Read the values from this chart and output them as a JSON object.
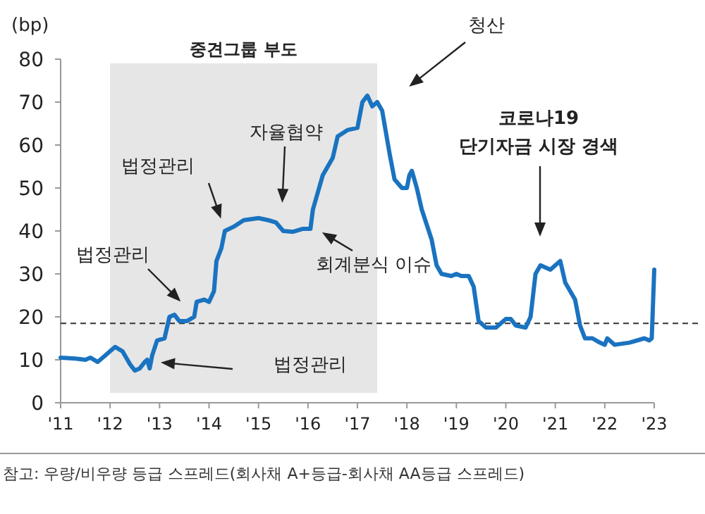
{
  "chart_data": {
    "type": "line",
    "ylabel": "(bp)",
    "x": [
      2011.0,
      2011.3,
      2011.5,
      2011.6,
      2011.75,
      2011.9,
      2012.0,
      2012.1,
      2012.25,
      2012.4,
      2012.5,
      2012.6,
      2012.7,
      2012.75,
      2012.8,
      2012.85,
      2012.95,
      2013.1,
      2013.2,
      2013.3,
      2013.4,
      2013.55,
      2013.7,
      2013.75,
      2013.9,
      2014.0,
      2014.1,
      2014.15,
      2014.25,
      2014.32,
      2014.5,
      2014.7,
      2015.0,
      2015.2,
      2015.35,
      2015.5,
      2015.7,
      2015.9,
      2016.05,
      2016.1,
      2016.3,
      2016.5,
      2016.6,
      2016.8,
      2017.0,
      2017.1,
      2017.2,
      2017.3,
      2017.4,
      2017.5,
      2017.65,
      2017.75,
      2017.9,
      2018.0,
      2018.05,
      2018.1,
      2018.2,
      2018.3,
      2018.5,
      2018.6,
      2018.7,
      2018.9,
      2019.0,
      2019.1,
      2019.25,
      2019.35,
      2019.45,
      2019.6,
      2019.8,
      2020.0,
      2020.1,
      2020.2,
      2020.4,
      2020.5,
      2020.6,
      2020.7,
      2020.9,
      2021.0,
      2021.1,
      2021.2,
      2021.4,
      2021.5,
      2021.6,
      2021.75,
      2021.9,
      2022.0,
      2022.05,
      2022.2,
      2022.5,
      2022.8,
      2022.9,
      2022.95,
      2023.0
    ],
    "series": [
      {
        "color": "#1a73c0",
        "values": [
          10.5,
          10.3,
          10,
          10.5,
          9.5,
          11,
          12,
          13,
          12,
          9,
          7.5,
          8,
          9.5,
          10,
          8,
          11,
          14.5,
          15,
          20,
          20.5,
          19,
          19,
          20,
          23.5,
          24,
          23.5,
          26,
          33,
          36,
          40,
          41,
          42.5,
          43,
          42.5,
          42,
          40,
          39.8,
          40.5,
          40.5,
          45,
          53,
          57,
          62,
          63.5,
          64,
          70,
          71.5,
          69,
          70,
          68,
          58,
          52,
          50,
          50,
          53,
          54,
          50,
          45,
          38,
          32,
          30,
          29.5,
          30,
          29.5,
          29.5,
          27,
          19,
          17.5,
          17.5,
          19.5,
          19.5,
          18,
          17.5,
          20,
          30,
          32,
          31,
          32,
          33,
          28,
          24,
          18,
          15,
          15,
          14,
          13.5,
          15,
          13.5,
          14,
          15,
          14.5,
          15,
          31
        ]
      }
    ],
    "xlim": [
      2011,
      2023
    ],
    "ylim": [
      0,
      80
    ],
    "xticks": [
      {
        "value": 2011,
        "label": "'11"
      },
      {
        "value": 2012,
        "label": "'12"
      },
      {
        "value": 2013,
        "label": "'13"
      },
      {
        "value": 2014,
        "label": "'14"
      },
      {
        "value": 2015,
        "label": "'15"
      },
      {
        "value": 2016,
        "label": "'16"
      },
      {
        "value": 2017,
        "label": "'17"
      },
      {
        "value": 2018,
        "label": "'18"
      },
      {
        "value": 2019,
        "label": "'19"
      },
      {
        "value": 2020,
        "label": "'20"
      },
      {
        "value": 2021,
        "label": "'21"
      },
      {
        "value": 2022,
        "label": "'22"
      },
      {
        "value": 2023,
        "label": "'23"
      }
    ],
    "yticks": [
      0,
      10,
      20,
      30,
      40,
      50,
      60,
      70,
      80
    ],
    "grid": false,
    "marker": "none",
    "line_style": "solid",
    "bands": [
      {
        "axis": "x",
        "from": 2012,
        "to": 2017.4,
        "label": "중견그룹 부도",
        "color": "#e6e6e6"
      }
    ],
    "ref_lines": [
      {
        "axis": "y",
        "value": 18.5,
        "color": "#333333",
        "line_style": "dashed"
      }
    ],
    "annotations": [
      "참고: 우량/비우량 등급 스프레드(회사채 A+등급-회사채 AA등급 스프레드)",
      "법정관리",
      "법정관리",
      "법정관리",
      "자율협약",
      "회계분식 이슈",
      "청산",
      "코로나19\n단기자금 시장 경색"
    ]
  }
}
